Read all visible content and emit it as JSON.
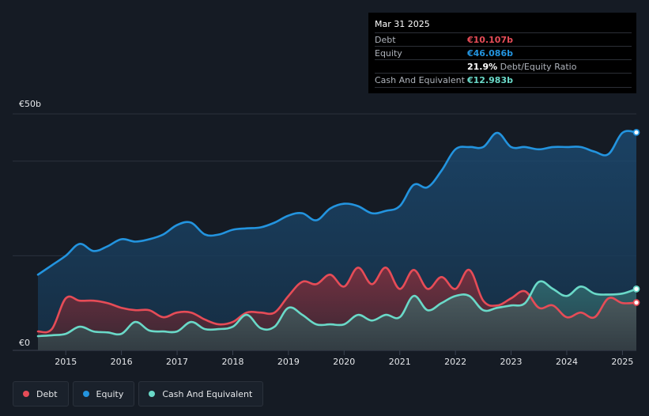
{
  "tooltip": {
    "date": "Mar 31 2025",
    "debt_label": "Debt",
    "debt_value": "€10.107b",
    "equity_label": "Equity",
    "equity_value": "€46.086b",
    "ratio_value": "21.9%",
    "ratio_label": "Debt/Equity Ratio",
    "cash_label": "Cash And Equivalent",
    "cash_value": "€12.983b"
  },
  "colors": {
    "debt": "#e64c57",
    "equity": "#2394df",
    "cash": "#6ad9c8",
    "debt_value_text": "#e64c57",
    "equity_value_text": "#2394df",
    "cash_value_text": "#6ad9c8"
  },
  "legend": [
    {
      "label": "Debt",
      "color": "#e64c57"
    },
    {
      "label": "Equity",
      "color": "#2394df"
    },
    {
      "label": "Cash And Equivalent",
      "color": "#6ad9c8"
    }
  ],
  "chart_data": {
    "type": "area",
    "title": "",
    "xlabel": "",
    "ylabel": "",
    "y_unit": "€ billions",
    "y_tick_labels": [
      "€50b",
      "€0"
    ],
    "ylim": [
      0,
      50
    ],
    "xlim": [
      2014.5,
      2025.25
    ],
    "x_ticks": [
      2015,
      2016,
      2017,
      2018,
      2019,
      2020,
      2021,
      2022,
      2023,
      2024,
      2025
    ],
    "x_tick_labels": [
      "2015",
      "2016",
      "2017",
      "2018",
      "2019",
      "2020",
      "2021",
      "2022",
      "2023",
      "2024",
      "2025"
    ],
    "gridlines": [
      0,
      20,
      40,
      50
    ],
    "series": [
      {
        "name": "Equity",
        "x": [
          2014.5,
          2014.75,
          2015.0,
          2015.25,
          2015.5,
          2015.75,
          2016.0,
          2016.25,
          2016.5,
          2016.75,
          2017.0,
          2017.25,
          2017.5,
          2017.75,
          2018.0,
          2018.25,
          2018.5,
          2018.75,
          2019.0,
          2019.25,
          2019.5,
          2019.75,
          2020.0,
          2020.25,
          2020.5,
          2020.75,
          2021.0,
          2021.25,
          2021.5,
          2021.75,
          2022.0,
          2022.25,
          2022.5,
          2022.75,
          2023.0,
          2023.25,
          2023.5,
          2023.75,
          2024.0,
          2024.25,
          2024.5,
          2024.75,
          2025.0,
          2025.25
        ],
        "values": [
          16,
          18,
          20,
          22.5,
          21,
          22,
          23.5,
          23,
          23.5,
          24.5,
          26.5,
          27,
          24.5,
          24.5,
          25.5,
          25.8,
          26,
          27,
          28.5,
          29,
          27.5,
          30,
          31,
          30.5,
          29,
          29.5,
          30.5,
          35,
          34.5,
          38,
          42.5,
          43,
          43,
          46,
          43,
          43,
          42.5,
          43,
          43,
          43,
          42,
          41.5,
          46,
          46.086
        ]
      },
      {
        "name": "Debt",
        "x": [
          2014.5,
          2014.75,
          2015.0,
          2015.25,
          2015.5,
          2015.75,
          2016.0,
          2016.25,
          2016.5,
          2016.75,
          2017.0,
          2017.25,
          2017.5,
          2017.75,
          2018.0,
          2018.25,
          2018.5,
          2018.75,
          2019.0,
          2019.25,
          2019.5,
          2019.75,
          2020.0,
          2020.25,
          2020.5,
          2020.75,
          2021.0,
          2021.25,
          2021.5,
          2021.75,
          2022.0,
          2022.25,
          2022.5,
          2022.75,
          2023.0,
          2023.25,
          2023.5,
          2023.75,
          2024.0,
          2024.25,
          2024.5,
          2024.75,
          2025.0,
          2025.25
        ],
        "values": [
          4,
          4.5,
          11,
          10.5,
          10.5,
          10,
          9,
          8.5,
          8.5,
          7,
          8,
          8,
          6.5,
          5.5,
          6,
          8,
          8,
          8,
          11.5,
          14.5,
          14,
          16,
          13.5,
          17.5,
          14,
          17.5,
          13,
          17,
          13,
          15.5,
          13,
          17,
          10.5,
          9.5,
          11,
          12.5,
          9,
          9.5,
          7,
          8,
          7,
          11,
          10,
          10.107
        ]
      },
      {
        "name": "Cash And Equivalent",
        "x": [
          2014.5,
          2014.75,
          2015.0,
          2015.25,
          2015.5,
          2015.75,
          2016.0,
          2016.25,
          2016.5,
          2016.75,
          2017.0,
          2017.25,
          2017.5,
          2017.75,
          2018.0,
          2018.25,
          2018.5,
          2018.75,
          2019.0,
          2019.25,
          2019.5,
          2019.75,
          2020.0,
          2020.25,
          2020.5,
          2020.75,
          2021.0,
          2021.25,
          2021.5,
          2021.75,
          2022.0,
          2022.25,
          2022.5,
          2022.75,
          2023.0,
          2023.25,
          2023.5,
          2023.75,
          2024.0,
          2024.25,
          2024.5,
          2024.75,
          2025.0,
          2025.25
        ],
        "values": [
          3,
          3.2,
          3.5,
          5,
          4,
          3.8,
          3.5,
          6,
          4.2,
          4,
          4,
          6,
          4.5,
          4.5,
          5,
          7.5,
          4.7,
          5,
          9,
          7.5,
          5.5,
          5.5,
          5.5,
          7.5,
          6.3,
          7.5,
          7,
          11.5,
          8.5,
          10,
          11.5,
          11.5,
          8.5,
          9,
          9.5,
          10,
          14.5,
          13,
          11.5,
          13.5,
          12,
          11.8,
          12,
          12.983
        ]
      }
    ]
  }
}
